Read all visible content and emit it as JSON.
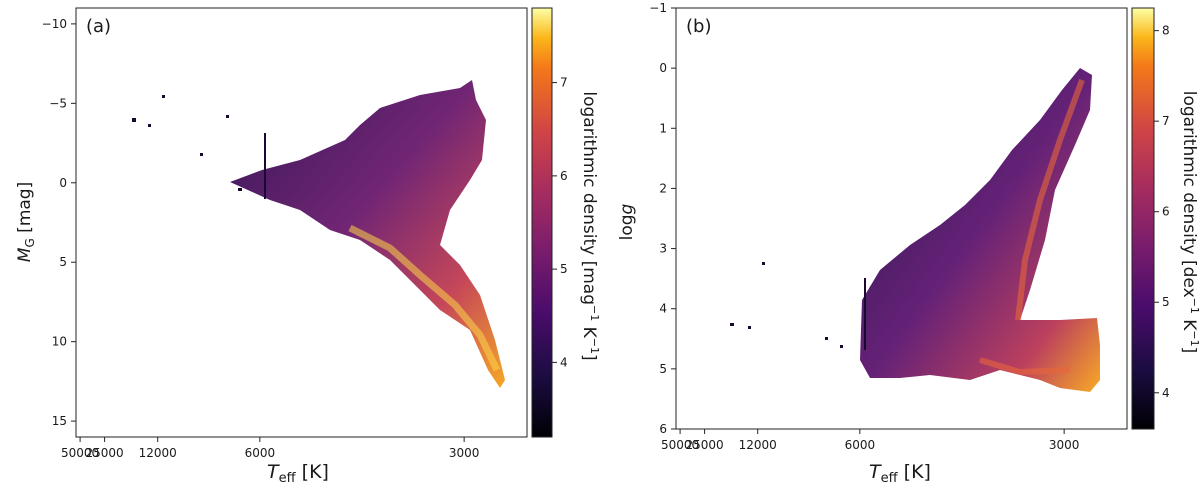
{
  "chart_data": [
    {
      "type": "heatmap",
      "panel_label": "(a)",
      "xlabel": "$T_{\\rm eff}$ [K]",
      "xlabel_main": "T",
      "xlabel_sub": "eff",
      "xlabel_unit": " [K]",
      "x_scale": "reciprocal",
      "xticks": [
        50000,
        25000,
        12000,
        6000,
        3000
      ],
      "xlim": [
        60000,
        2600
      ],
      "ylabel": "M_G [mag]",
      "ylabel_main": "M",
      "ylabel_sub": "G",
      "ylabel_unit": " [mag]",
      "yticks": [
        -10,
        -5,
        0,
        5,
        10,
        15
      ],
      "ylim": [
        -11,
        16
      ],
      "y_inverted": true,
      "colorbar": {
        "label": "logarithmic density [mag⁻¹ K⁻¹]",
        "label_main": "logarithmic density [mag",
        "label_sup1": "−1",
        "label_mid": " K",
        "label_sup2": "−1",
        "label_end": "]",
        "ticks": [
          4,
          5,
          6,
          7
        ],
        "range": [
          3.2,
          7.8
        ],
        "colormap": "inferno"
      },
      "grid": false
    },
    {
      "type": "heatmap",
      "panel_label": "(b)",
      "xlabel": "$T_{\\rm eff}$ [K]",
      "xlabel_main": "T",
      "xlabel_sub": "eff",
      "xlabel_unit": " [K]",
      "x_scale": "reciprocal",
      "xticks": [
        50000,
        25000,
        12000,
        6000,
        3000
      ],
      "xlim": [
        60000,
        2600
      ],
      "ylabel": "log g",
      "ylabel_main": "log",
      "ylabel_italic": "g",
      "yticks": [
        -1,
        0,
        1,
        2,
        3,
        4,
        5,
        6
      ],
      "ylim": [
        -1,
        6
      ],
      "y_inverted": true,
      "colorbar": {
        "label": "logarithmic density [dex⁻¹ K⁻¹]",
        "label_main": "logarithmic density [dex",
        "label_sup1": "−1",
        "label_mid": " K",
        "label_sup2": "−1",
        "label_end": "]",
        "ticks": [
          4,
          5,
          6,
          7,
          8
        ],
        "range": [
          3.6,
          8.25
        ],
        "colormap": "inferno"
      },
      "grid": false
    }
  ]
}
